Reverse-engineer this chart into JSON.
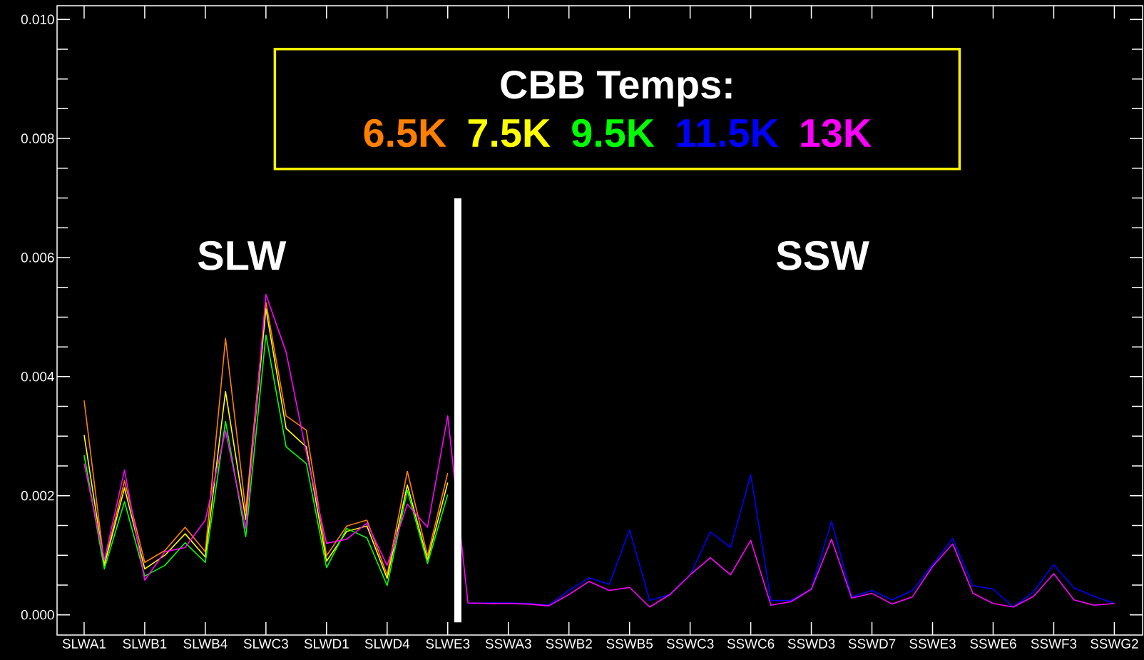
{
  "chart_data": {
    "type": "line",
    "legend_title": "CBB Temps:",
    "legend": "top",
    "annotations": [
      "SLW",
      "SSW"
    ],
    "categories": [
      "SLWA1",
      null,
      null,
      "SLWB1",
      null,
      null,
      "SLWB4",
      null,
      null,
      "SLWC3",
      null,
      null,
      "SLWD1",
      null,
      null,
      "SLWD4",
      null,
      null,
      "SLWE3",
      null,
      null,
      "SSWA3",
      null,
      null,
      "SSWB2",
      null,
      null,
      "SSWB5",
      null,
      null,
      "SSWC3",
      null,
      null,
      "SSWC6",
      null,
      null,
      "SSWD3",
      null,
      null,
      "SSWD7",
      null,
      null,
      "SSWE3",
      null,
      null,
      "SSWE6",
      null,
      null,
      "SSWF3",
      null,
      null,
      "SSWG2"
    ],
    "ylim": [
      -0.00034,
      0.01023
    ],
    "yticks": [
      {
        "value": 0,
        "label": "0.000"
      },
      {
        "value": 0.002,
        "label": "0.002"
      },
      {
        "value": 0.004,
        "label": "0.004"
      },
      {
        "value": 0.006,
        "label": "0.006"
      },
      {
        "value": 0.008,
        "label": "0.008"
      },
      {
        "value": 0.01,
        "label": "0.010"
      }
    ],
    "series": [
      {
        "name": "6.5K",
        "color": "#ff8000",
        "values": [
          0.0036,
          0.00085,
          0.00225,
          0.00088,
          0.00108,
          0.00147,
          0.00106,
          0.00464,
          0.00175,
          0.00525,
          0.00334,
          0.0031,
          0.00099,
          0.00149,
          0.00159,
          0.00067,
          0.00241,
          0.00099,
          0.00238,
          null,
          null,
          null,
          null,
          null,
          null,
          null,
          null,
          null,
          null,
          null,
          null,
          null,
          null,
          null,
          null,
          null,
          null,
          null,
          null,
          null,
          null,
          null,
          null,
          null,
          null,
          null,
          null,
          null,
          null,
          null,
          null,
          null
        ]
      },
      {
        "name": "7.5K",
        "color": "#ffff00",
        "values": [
          0.00302,
          0.00083,
          0.00213,
          0.00077,
          0.001,
          0.00136,
          0.00097,
          0.00375,
          0.0016,
          0.00514,
          0.00313,
          0.00282,
          0.0009,
          0.0014,
          0.00149,
          0.00061,
          0.00218,
          0.00092,
          0.00222,
          null,
          null,
          null,
          null,
          null,
          null,
          null,
          null,
          null,
          null,
          null,
          null,
          null,
          null,
          null,
          null,
          null,
          null,
          null,
          null,
          null,
          null,
          null,
          null,
          null,
          null,
          null,
          null,
          null,
          null,
          null,
          null,
          null
        ]
      },
      {
        "name": "9.5K",
        "color": "#00ff00",
        "values": [
          0.00268,
          0.00077,
          0.0019,
          0.00065,
          0.00083,
          0.00121,
          0.00088,
          0.00325,
          0.00131,
          0.0047,
          0.00282,
          0.00254,
          0.00079,
          0.00145,
          0.00129,
          0.00049,
          0.00209,
          0.00086,
          0.00202,
          null,
          null,
          null,
          null,
          null,
          null,
          null,
          null,
          null,
          null,
          null,
          null,
          null,
          null,
          null,
          null,
          null,
          null,
          null,
          null,
          null,
          null,
          null,
          null,
          null,
          null,
          null,
          null,
          null,
          null,
          null,
          null,
          null
        ]
      },
      {
        "name": "11.5K",
        "color": "#0000ff",
        "values": [
          null,
          null,
          null,
          null,
          null,
          null,
          null,
          null,
          null,
          null,
          null,
          null,
          null,
          null,
          null,
          null,
          null,
          null,
          null,
          0.00019,
          0.0002,
          0.0002,
          0.00019,
          0.00016,
          0.00041,
          0.00062,
          0.00051,
          0.00143,
          0.00024,
          0.00034,
          0.00067,
          0.00139,
          0.00113,
          0.00235,
          0.00024,
          0.00024,
          0.00043,
          0.00157,
          0.0003,
          0.00041,
          0.00025,
          0.00041,
          0.00084,
          0.00128,
          0.00049,
          0.00043,
          0.00013,
          0.00039,
          0.00084,
          0.00045,
          0.00031,
          0.00019
        ]
      },
      {
        "name": "13K",
        "color": "#ff00ff",
        "values": [
          0.00254,
          0.00092,
          0.00243,
          0.00058,
          0.00106,
          0.00113,
          0.00159,
          0.00309,
          0.00145,
          0.00538,
          0.00441,
          0.00272,
          0.0012,
          0.00127,
          0.00154,
          0.00083,
          0.00186,
          0.00147,
          0.00334,
          0.0002,
          0.00019,
          0.00019,
          0.00018,
          0.00015,
          0.00034,
          0.00056,
          0.00041,
          0.00046,
          0.00013,
          0.00034,
          0.00067,
          0.00096,
          0.00067,
          0.00125,
          0.00016,
          0.00022,
          0.00043,
          0.00127,
          0.00028,
          0.00036,
          0.00018,
          0.0003,
          0.00081,
          0.00119,
          0.00036,
          0.00019,
          0.00013,
          0.00031,
          0.00069,
          0.00025,
          0.00016,
          0.00019
        ]
      }
    ]
  }
}
